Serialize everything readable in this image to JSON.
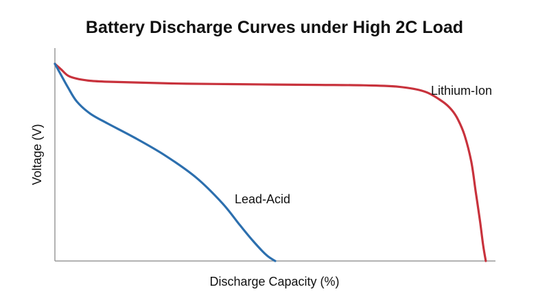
{
  "chart_data": {
    "type": "line",
    "title": "Battery Discharge Curves under High 2C Load",
    "xlabel": "Discharge Capacity (%)",
    "ylabel": "Voltage (V)",
    "xlim": [
      0,
      100
    ],
    "ylim": [
      0,
      100
    ],
    "grid": false,
    "legend": "none (series labeled directly on curves)",
    "series": [
      {
        "name": "Lithium-Ion",
        "color": "#c8323c",
        "x": [
          0,
          1.5,
          3,
          5,
          8,
          12,
          20,
          30,
          40,
          50,
          60,
          70,
          78,
          84,
          88,
          90,
          91.5,
          93,
          94.5,
          95.5,
          96.5,
          97.2,
          97.8
        ],
        "y": [
          99,
          96,
          93,
          91.5,
          90.5,
          90,
          89.5,
          89,
          88.8,
          88.6,
          88.4,
          88.2,
          87.5,
          85,
          80,
          76,
          71,
          63,
          50,
          35,
          20,
          8,
          0
        ]
      },
      {
        "name": "Lead-Acid",
        "color": "#2c6fae",
        "x": [
          0,
          1.5,
          3,
          5,
          8,
          12,
          18,
          25,
          32,
          38,
          42,
          45,
          48,
          50
        ],
        "y": [
          99,
          93,
          87,
          80,
          74,
          69,
          62,
          53,
          42,
          29,
          18,
          10,
          3,
          0
        ]
      }
    ]
  }
}
